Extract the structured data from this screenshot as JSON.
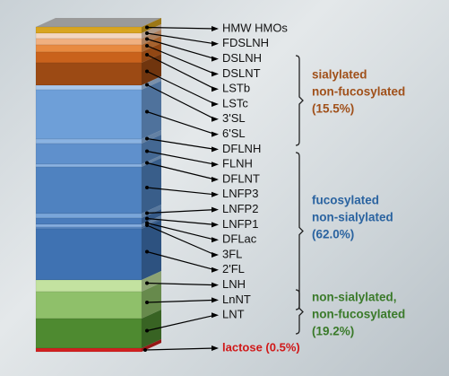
{
  "labels": [
    "HMW HMOs",
    "FDSLNH",
    "DSLNH",
    "DSLNT",
    "LSTb",
    "LSTc",
    "3'SL",
    "6'SL",
    "DFLNH",
    "FLNH",
    "DFLNT",
    "LNFP3",
    "LNFP2",
    "LNFP1",
    "DFLac",
    "3FL",
    "2'FL",
    "LNH",
    "LnNT",
    "LNT"
  ],
  "lactose": "lactose (0.5%)",
  "groups": [
    {
      "lines": [
        "sialylated",
        "non-fucosylated",
        "(15.5%)"
      ]
    },
    {
      "lines": [
        "fucosylated",
        "non-sialylated",
        "(62.0%)"
      ]
    },
    {
      "lines": [
        "non-sialylated,",
        "non-fucosylated",
        "(19.2%)"
      ]
    }
  ]
}
